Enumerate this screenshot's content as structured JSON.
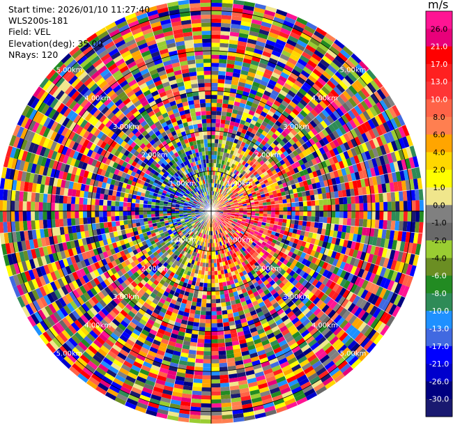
{
  "info": {
    "start_time": "Start time: 2026/01/10 11:27:40",
    "site": "WLS200s-181",
    "field": "Field: VEL",
    "elevation": "Elevation(deg): 35.00",
    "nrays": "NRays: 120"
  },
  "colorbar": {
    "unit": "m/s",
    "ticks": [
      "26.0",
      "21.0",
      "17.0",
      "13.0",
      "10.0",
      "8.0",
      "6.0",
      "4.0",
      "2.0",
      "1.0",
      "0.0",
      "-1.0",
      "-2.0",
      "-4.0",
      "-6.0",
      "-8.0",
      "-10.0",
      "-13.0",
      "-17.0",
      "-21.0",
      "-26.0",
      "-30.0"
    ],
    "colors": [
      "#ff1493",
      "#e8007a",
      "#ff0000",
      "#ff2020",
      "#ff3535",
      "#ff6347",
      "#ff7f50",
      "#ffa500",
      "#ffd700",
      "#ffff00",
      "#f0e68c",
      "#808080",
      "#696969",
      "#9acd32",
      "#6b8e23",
      "#228b22",
      "#2e8b57",
      "#1e90ff",
      "#4169e1",
      "#0000ff",
      "#0000cd",
      "#000080",
      "#191970"
    ]
  },
  "chart_data": {
    "type": "heatmap",
    "projection": "polar PPI",
    "title": "",
    "field": "VEL",
    "units": "m/s",
    "nrays": 120,
    "elevation_deg": 35.0,
    "range_km_max": 5.3,
    "range_rings_km": [
      1.0,
      2.0,
      3.0,
      4.0,
      5.0
    ],
    "ring_labels": [
      "1.00km",
      "2.00km",
      "3.00km",
      "4.00km",
      "5.00km"
    ],
    "color_scale_min": -30.0,
    "color_scale_max": 26.0
  }
}
